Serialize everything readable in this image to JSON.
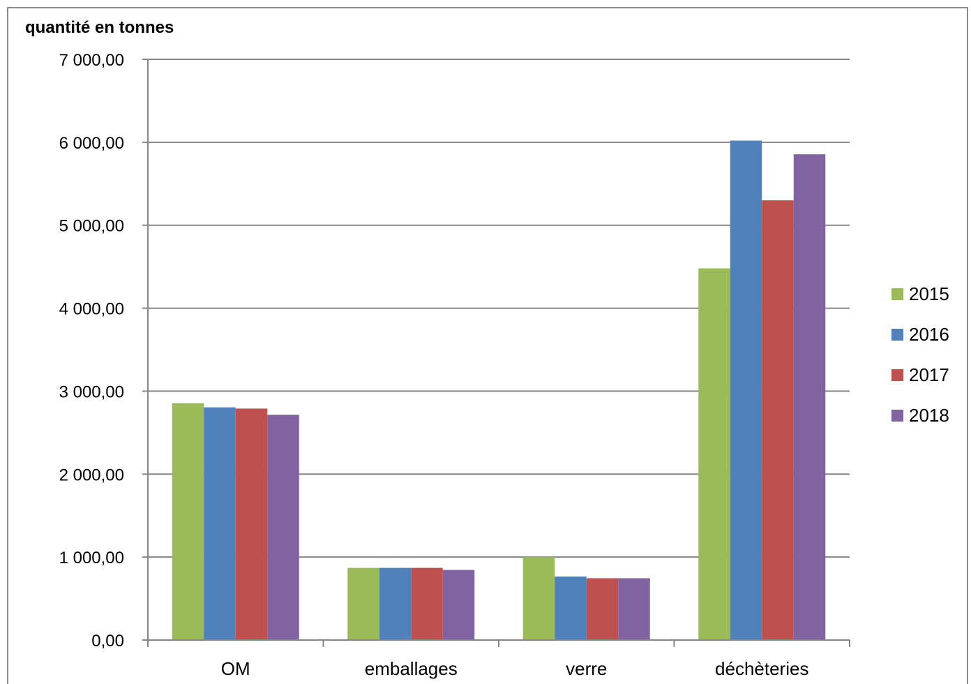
{
  "chart_data": {
    "type": "bar",
    "title": "quantité  en tonnes",
    "categories": [
      "OM",
      "emballages",
      "verre",
      "déchèteries"
    ],
    "series": [
      {
        "name": "2015",
        "color": "#9bbb59",
        "values": [
          2855,
          870,
          1000,
          4480
        ]
      },
      {
        "name": "2016",
        "color": "#4f81bd",
        "values": [
          2805,
          870,
          765,
          6020
        ]
      },
      {
        "name": "2017",
        "color": "#c0504d",
        "values": [
          2790,
          870,
          745,
          5300
        ]
      },
      {
        "name": "2018",
        "color": "#8064a2",
        "values": [
          2715,
          845,
          745,
          5855
        ]
      }
    ],
    "ylim": [
      0,
      7000
    ],
    "yticks": [
      0,
      1000,
      2000,
      3000,
      4000,
      5000,
      6000,
      7000
    ],
    "ytick_labels": [
      "0,00",
      "1 000,00",
      "2 000,00",
      "3 000,00",
      "4 000,00",
      "5 000,00",
      "6 000,00",
      "7 000,00"
    ],
    "grid": true,
    "legend_position": "right"
  }
}
